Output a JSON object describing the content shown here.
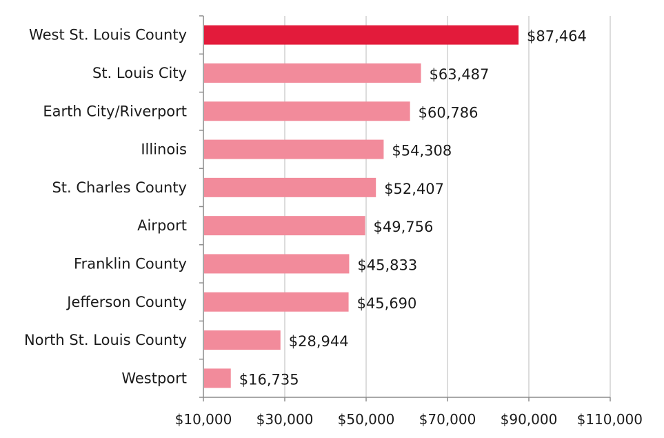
{
  "chart_data": {
    "type": "bar",
    "orientation": "horizontal",
    "title": "",
    "xlabel": "",
    "ylabel": "",
    "categories": [
      "West St. Louis County",
      "St. Louis City",
      "Earth City/Riverport",
      "Illinois",
      "St. Charles County",
      "Airport",
      "Franklin County",
      "Jefferson County",
      "North St. Louis County",
      "Westport"
    ],
    "values": [
      87464,
      63487,
      60786,
      54308,
      52407,
      49756,
      45833,
      45690,
      28944,
      16735
    ],
    "value_labels": [
      "$87,464",
      "$63,487",
      "$60,786",
      "$54,308",
      "$52,407",
      "$49,756",
      "$45,833",
      "$45,690",
      "$28,944",
      "$16,735"
    ],
    "xlim": [
      10000,
      110000
    ],
    "xticks": [
      10000,
      30000,
      50000,
      70000,
      90000,
      110000
    ],
    "xtick_labels": [
      "$10,000",
      "$30,000",
      "$50,000",
      "$70,000",
      "$90,000",
      "$110,000"
    ],
    "grid": "vertical",
    "legend": "none",
    "highlight_index": 0,
    "colors": {
      "highlight": "#e31b3b",
      "bar": "#f28b9b",
      "grid": "#d0d0d0",
      "axis": "#8c8c8c"
    }
  }
}
